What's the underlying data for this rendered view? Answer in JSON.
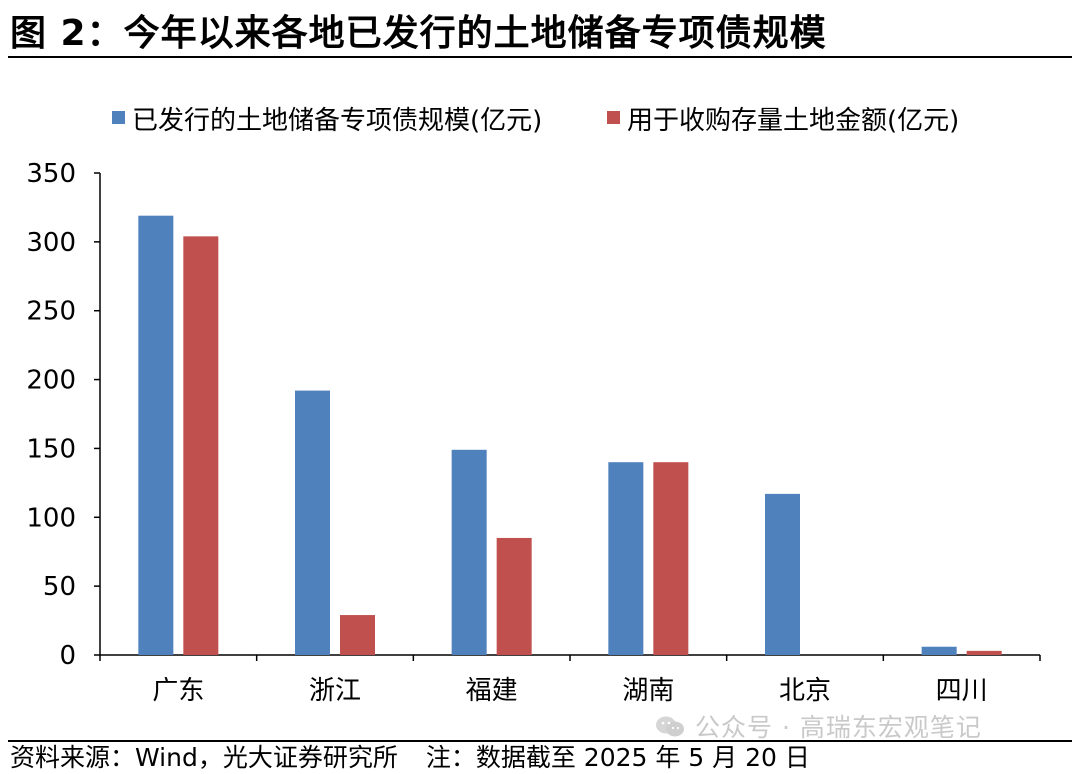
{
  "figure": {
    "title": "图 2：今年以来各地已发行的土地储备专项债规模",
    "source": "资料来源：Wind，光大证券研究所",
    "note": "注：数据截至 2025 年 5 月 20 日",
    "watermark": "公众号 · 高瑞东宏观笔记"
  },
  "chart_data": {
    "type": "bar",
    "title": "",
    "xlabel": "",
    "ylabel": "",
    "categories": [
      "广东",
      "浙江",
      "福建",
      "湖南",
      "北京",
      "四川"
    ],
    "series": [
      {
        "name": "已发行的土地储备专项债规模(亿元)",
        "color": "#4f81bd",
        "values": [
          319,
          192,
          149,
          140,
          117,
          6
        ]
      },
      {
        "name": "用于收购存量土地金额(亿元)",
        "color": "#c0504d",
        "values": [
          304,
          29,
          85,
          140,
          0,
          3
        ]
      }
    ],
    "ylim": [
      0,
      350
    ],
    "yticks": [
      "0",
      "50",
      "100",
      "150",
      "200",
      "250",
      "300",
      "350"
    ],
    "ytick_values": [
      0,
      50,
      100,
      150,
      200,
      250,
      300,
      350
    ],
    "grid": false,
    "legend_position": "top"
  }
}
